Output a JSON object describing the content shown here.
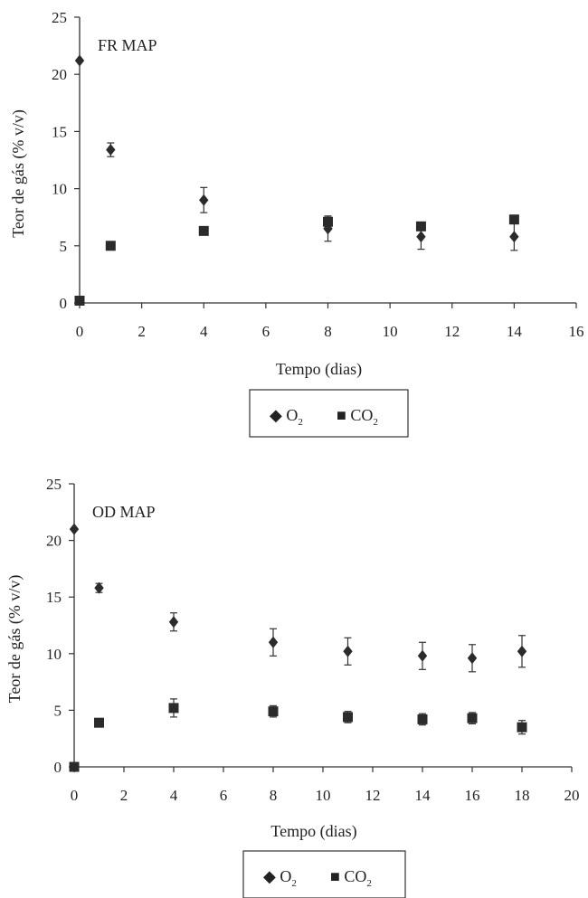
{
  "chart_data": [
    {
      "type": "scatter",
      "title": "FR MAP",
      "xlabel": "Tempo (dias)",
      "ylabel": "Teor de gás  (% v/v)",
      "xlim": [
        0,
        16
      ],
      "ylim": [
        0,
        25
      ],
      "xticks": [
        0,
        2,
        4,
        6,
        8,
        10,
        12,
        14,
        16
      ],
      "yticks": [
        0,
        5,
        10,
        15,
        20,
        25
      ],
      "grid": false,
      "legend_position": "bottom",
      "legend": [
        {
          "symbol": "◆",
          "base": "O",
          "sub": "2",
          "marker": "diamond"
        },
        {
          "symbol": "■",
          "base": "CO",
          "sub": "2",
          "marker": "square"
        }
      ],
      "series": [
        {
          "marker": "diamond",
          "x": [
            0,
            1,
            4,
            8,
            11,
            14
          ],
          "y": [
            21.2,
            13.4,
            9.0,
            6.5,
            5.8,
            5.8
          ],
          "err": [
            0,
            0.6,
            1.1,
            1.1,
            1.1,
            1.2
          ]
        },
        {
          "marker": "square",
          "x": [
            0,
            1,
            4,
            8,
            11,
            14
          ],
          "y": [
            0.2,
            5.0,
            6.3,
            7.1,
            6.7,
            7.3
          ],
          "err": [
            0,
            0,
            0,
            0.5,
            0.3,
            0.3
          ]
        }
      ]
    },
    {
      "type": "scatter",
      "title": "OD MAP",
      "xlabel": "Tempo (dias)",
      "ylabel": "Teor de gás (% v/v)",
      "xlim": [
        0,
        20
      ],
      "ylim": [
        0,
        25
      ],
      "xticks": [
        0,
        2,
        4,
        6,
        8,
        10,
        12,
        14,
        16,
        18,
        20
      ],
      "yticks": [
        0,
        5,
        10,
        15,
        20,
        25
      ],
      "grid": false,
      "legend_position": "bottom",
      "legend": [
        {
          "symbol": "◆",
          "base": "O",
          "sub": "2",
          "marker": "diamond"
        },
        {
          "symbol": "■",
          "base": "CO",
          "sub": "2",
          "marker": "square"
        }
      ],
      "series": [
        {
          "marker": "diamond",
          "x": [
            0,
            1,
            4,
            8,
            11,
            14,
            16,
            18
          ],
          "y": [
            21.0,
            15.8,
            12.8,
            11.0,
            10.2,
            9.8,
            9.6,
            10.2
          ],
          "err": [
            0,
            0.4,
            0.8,
            1.2,
            1.2,
            1.2,
            1.2,
            1.4
          ]
        },
        {
          "marker": "square",
          "x": [
            0,
            1,
            4,
            8,
            11,
            14,
            16,
            18
          ],
          "y": [
            0,
            3.9,
            5.2,
            4.9,
            4.4,
            4.2,
            4.3,
            3.5
          ],
          "err": [
            0,
            0,
            0.8,
            0.5,
            0.5,
            0.5,
            0.5,
            0.6
          ]
        }
      ]
    }
  ]
}
